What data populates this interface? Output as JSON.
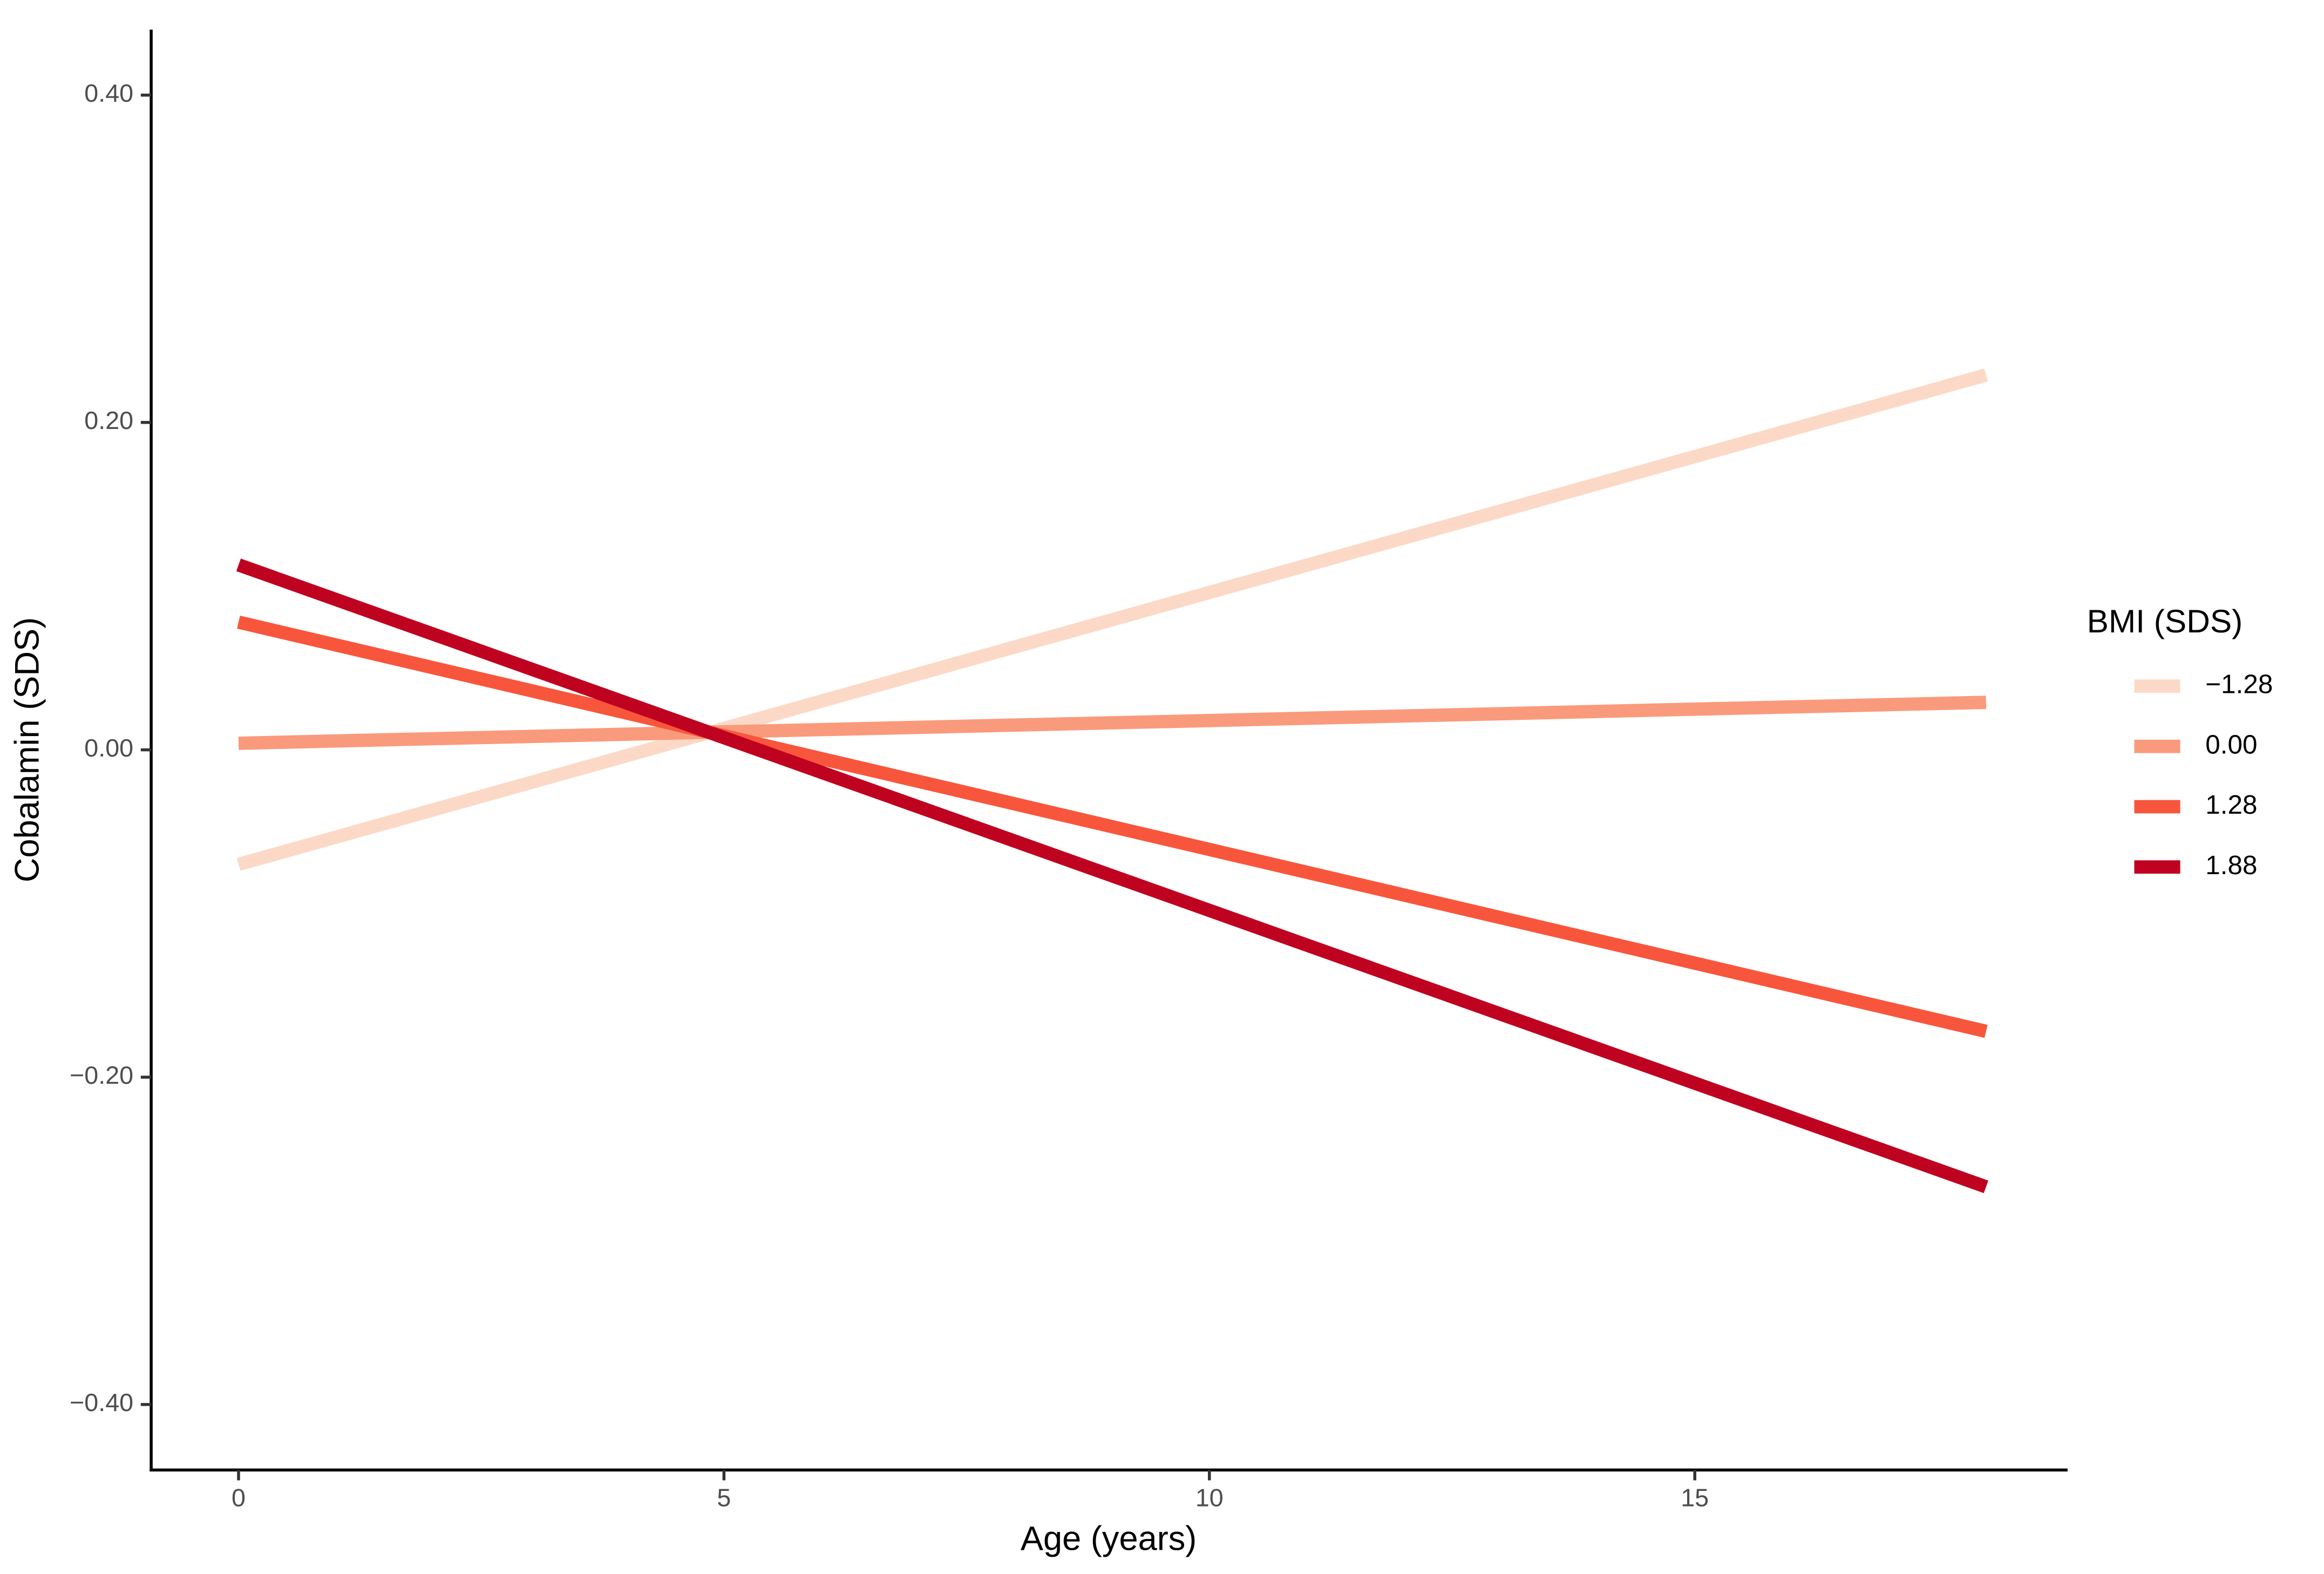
{
  "chart_data": {
    "type": "line",
    "x_label": "Age (years)",
    "y_label": "Cobalamin (SDS)",
    "legend_title": "BMI (SDS)",
    "legend_position": "right",
    "x": [
      0,
      18
    ],
    "series": [
      {
        "name": "−1.28",
        "color": "#fcd9c6",
        "values": [
          -0.07,
          0.229
        ]
      },
      {
        "name": "0.00",
        "color": "#fa9a7c",
        "values": [
          0.004,
          0.029
        ]
      },
      {
        "name": "1.28",
        "color": "#f8563c",
        "values": [
          0.078,
          -0.172
        ]
      },
      {
        "name": "1.88",
        "color": "#bf0220",
        "values": [
          0.113,
          -0.267
        ]
      }
    ],
    "xlim": [
      -0.9,
      18.84
    ],
    "xticks": [
      0,
      5,
      10,
      15
    ],
    "ylim": [
      -0.44,
      0.44
    ],
    "yticks": [
      {
        "value": -0.4,
        "label": "−0.40"
      },
      {
        "value": -0.2,
        "label": "−0.20"
      },
      {
        "value": 0,
        "label": "0.00"
      },
      {
        "value": 0.2,
        "label": "0.20"
      },
      {
        "value": 0.4,
        "label": "0.40"
      }
    ],
    "grid": false
  }
}
